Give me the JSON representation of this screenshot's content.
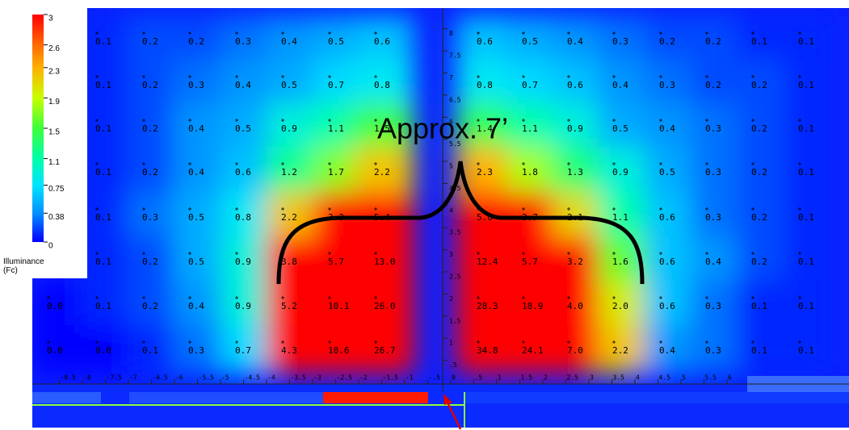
{
  "chart_data": {
    "type": "heatmap",
    "values": [
      [
        null,
        0.1,
        0.2,
        0.2,
        0.3,
        0.4,
        0.5,
        0.6,
        0.6,
        0.5,
        0.4,
        0.3,
        0.2,
        0.2,
        0.1,
        0.1
      ],
      [
        null,
        0.1,
        0.2,
        0.3,
        0.4,
        0.5,
        0.7,
        0.8,
        0.8,
        0.7,
        0.6,
        0.4,
        0.3,
        0.2,
        0.2,
        0.1
      ],
      [
        null,
        0.1,
        0.2,
        0.4,
        0.5,
        0.9,
        1.1,
        1.5,
        1.4,
        1.1,
        0.9,
        0.5,
        0.4,
        0.3,
        0.2,
        0.1
      ],
      [
        null,
        0.1,
        0.2,
        0.4,
        0.6,
        1.2,
        1.7,
        2.2,
        2.3,
        1.8,
        1.3,
        0.9,
        0.5,
        0.3,
        0.2,
        0.1
      ],
      [
        null,
        0.1,
        0.3,
        0.5,
        0.8,
        2.2,
        3.3,
        5.4,
        5.0,
        3.7,
        2.1,
        1.1,
        0.6,
        0.3,
        0.2,
        0.1
      ],
      [
        null,
        0.1,
        0.2,
        0.5,
        0.9,
        3.8,
        5.7,
        13.0,
        12.4,
        5.7,
        3.2,
        1.6,
        0.6,
        0.4,
        0.2,
        0.1
      ],
      [
        0,
        0.1,
        0.2,
        0.4,
        0.9,
        5.2,
        10.1,
        26,
        28.3,
        18.9,
        4,
        2,
        0.6,
        0.3,
        0.1,
        0.1
      ],
      [
        0,
        0,
        0.1,
        0.3,
        0.7,
        4.3,
        10.6,
        26.7,
        34.8,
        24.1,
        7,
        2.2,
        0.4,
        0.3,
        0.1,
        0.1
      ]
    ],
    "value_labels": [
      [
        null,
        "0.1",
        "0.2",
        "0.2",
        "0.3",
        "0.4",
        "0.5",
        "0.6",
        "0.6",
        "0.5",
        "0.4",
        "0.3",
        "0.2",
        "0.2",
        "0.1",
        "0.1"
      ],
      [
        null,
        "0.1",
        "0.2",
        "0.3",
        "0.4",
        "0.5",
        "0.7",
        "0.8",
        "0.8",
        "0.7",
        "0.6",
        "0.4",
        "0.3",
        "0.2",
        "0.2",
        "0.1"
      ],
      [
        null,
        "0.1",
        "0.2",
        "0.4",
        "0.5",
        "0.9",
        "1.1",
        "1.5",
        "1.4",
        "1.1",
        "0.9",
        "0.5",
        "0.4",
        "0.3",
        "0.2",
        "0.1"
      ],
      [
        null,
        "0.1",
        "0.2",
        "0.4",
        "0.6",
        "1.2",
        "1.7",
        "2.2",
        "2.3",
        "1.8",
        "1.3",
        "0.9",
        "0.5",
        "0.3",
        "0.2",
        "0.1"
      ],
      [
        null,
        "0.1",
        "0.3",
        "0.5",
        "0.8",
        "2.2",
        "3.3",
        "5.4",
        "5.0",
        "3.7",
        "2.1",
        "1.1",
        "0.6",
        "0.3",
        "0.2",
        "0.1"
      ],
      [
        null,
        "0.1",
        "0.2",
        "0.5",
        "0.9",
        "3.8",
        "5.7",
        "13.0",
        "12.4",
        "5.7",
        "3.2",
        "1.6",
        "0.6",
        "0.4",
        "0.2",
        "0.1"
      ],
      [
        "0.0",
        "0.1",
        "0.2",
        "0.4",
        "0.9",
        "5.2",
        "10.1",
        "26.0",
        "28.3",
        "18.9",
        "4.0",
        "2.0",
        "0.6",
        "0.3",
        "0.1",
        "0.1"
      ],
      [
        "0.0",
        "0.0",
        "0.1",
        "0.3",
        "0.7",
        "4.3",
        "10.6",
        "26.7",
        "34.8",
        "24.1",
        "7.0",
        "2.2",
        "0.4",
        "0.3",
        "0.1",
        "0.1"
      ]
    ],
    "colorbar": {
      "ticks": [
        3,
        2.6,
        2.3,
        1.9,
        1.5,
        1.1,
        0.75,
        0.38,
        0
      ],
      "colors": [
        "#ff0000",
        "#ff6a00",
        "#ffb000",
        "#c8ff00",
        "#3cff3c",
        "#00ffa8",
        "#00e4ff",
        "#0090ff",
        "#0000ff"
      ],
      "label": "Illuminance (Fc)"
    },
    "yruler": [
      8,
      7.5,
      7,
      6.5,
      6,
      5.5,
      5,
      4.5,
      4,
      3.5,
      3,
      2.5,
      2,
      1.5,
      1,
      {
        "value": 0.5,
        "label": ".5"
      }
    ],
    "xruler": [
      -8.5,
      -8,
      -7.5,
      -7,
      -6.5,
      -6,
      -5.5,
      -5,
      -4.5,
      -4,
      -3.5,
      -3,
      -2.5,
      -2,
      -1.5,
      -1,
      {
        "value": -0.5,
        "label": "-.5"
      },
      0,
      {
        "value": 0.5,
        "label": ".5"
      },
      1,
      1.5,
      2,
      2.5,
      3,
      3.5,
      4,
      4.5,
      5,
      5.5,
      6
    ],
    "annotation": "Approx. 7’"
  }
}
